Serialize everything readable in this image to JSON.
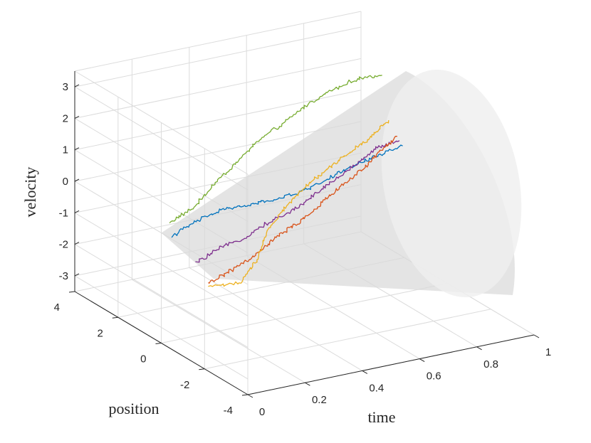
{
  "chart_data": {
    "type": "line",
    "projection": "3d",
    "xlabel": "time",
    "ylabel": "position",
    "zlabel": "velocity",
    "xlim": [
      0,
      1
    ],
    "ylim": [
      -4,
      4
    ],
    "zlim": [
      -3.5,
      3.5
    ],
    "x_ticks": [
      "0",
      "0.2",
      "0.4",
      "0.6",
      "0.8",
      "1"
    ],
    "y_ticks": [
      "-4",
      "-2",
      "0",
      "2",
      "4"
    ],
    "z_ticks": [
      "-3",
      "-2",
      "-1",
      "0",
      "1",
      "2",
      "3"
    ],
    "grid": true,
    "surface": {
      "shape": "cone",
      "color": "#d9d9d9",
      "apex": {
        "time": 0,
        "position": 0,
        "velocity": 0
      }
    },
    "series": [
      {
        "color": "#77ac30",
        "points": [
          [
            0.0,
            -0.4,
            0.5
          ],
          [
            0.1,
            -0.2,
            0.7
          ],
          [
            0.2,
            0.2,
            1.1
          ],
          [
            0.3,
            0.5,
            1.45
          ],
          [
            0.4,
            0.8,
            1.85
          ],
          [
            0.5,
            1.0,
            2.1
          ],
          [
            0.6,
            1.3,
            2.35
          ],
          [
            0.7,
            1.5,
            2.55
          ],
          [
            0.8,
            1.6,
            2.7
          ],
          [
            0.9,
            1.7,
            2.6
          ]
        ]
      },
      {
        "color": "#0072bd",
        "points": [
          [
            0.0,
            -0.5,
            0.1
          ],
          [
            0.1,
            -0.3,
            0.3
          ],
          [
            0.2,
            -0.2,
            0.45
          ],
          [
            0.3,
            0.0,
            0.3
          ],
          [
            0.4,
            0.1,
            0.25
          ],
          [
            0.5,
            0.2,
            0.25
          ],
          [
            0.6,
            0.35,
            0.4
          ],
          [
            0.7,
            0.5,
            0.55
          ],
          [
            0.8,
            0.6,
            0.7
          ],
          [
            0.9,
            0.75,
            0.75
          ]
        ]
      },
      {
        "color": "#7e2f8e",
        "points": [
          [
            0.0,
            -1.6,
            -0.3
          ],
          [
            0.1,
            -1.4,
            -0.1
          ],
          [
            0.2,
            -1.2,
            -0.05
          ],
          [
            0.3,
            -0.9,
            0.1
          ],
          [
            0.4,
            -0.7,
            0.2
          ],
          [
            0.5,
            -0.4,
            0.4
          ],
          [
            0.6,
            -0.1,
            0.6
          ],
          [
            0.7,
            0.2,
            0.8
          ],
          [
            0.8,
            0.6,
            0.95
          ],
          [
            0.9,
            0.9,
            0.85
          ]
        ]
      },
      {
        "color": "#d95319",
        "points": [
          [
            0.0,
            -2.2,
            -0.7
          ],
          [
            0.1,
            -1.9,
            -0.6
          ],
          [
            0.2,
            -1.6,
            -0.5
          ],
          [
            0.3,
            -1.3,
            -0.2
          ],
          [
            0.4,
            -1.0,
            -0.05
          ],
          [
            0.5,
            -0.7,
            0.2
          ],
          [
            0.6,
            -0.3,
            0.45
          ],
          [
            0.7,
            0.0,
            0.65
          ],
          [
            0.8,
            0.5,
            0.85
          ],
          [
            0.9,
            1.0,
            0.95
          ]
        ]
      },
      {
        "color": "#edb120",
        "points": [
          [
            0.0,
            -2.2,
            -0.8
          ],
          [
            0.1,
            -2.3,
            -0.85
          ],
          [
            0.2,
            -1.8,
            -0.5
          ],
          [
            0.3,
            -1.0,
            0.0
          ],
          [
            0.4,
            -0.5,
            0.3
          ],
          [
            0.5,
            -0.1,
            0.6
          ],
          [
            0.6,
            0.2,
            0.85
          ],
          [
            0.7,
            0.5,
            1.05
          ],
          [
            0.8,
            0.9,
            1.15
          ],
          [
            0.9,
            1.4,
            1.3
          ]
        ]
      }
    ]
  }
}
